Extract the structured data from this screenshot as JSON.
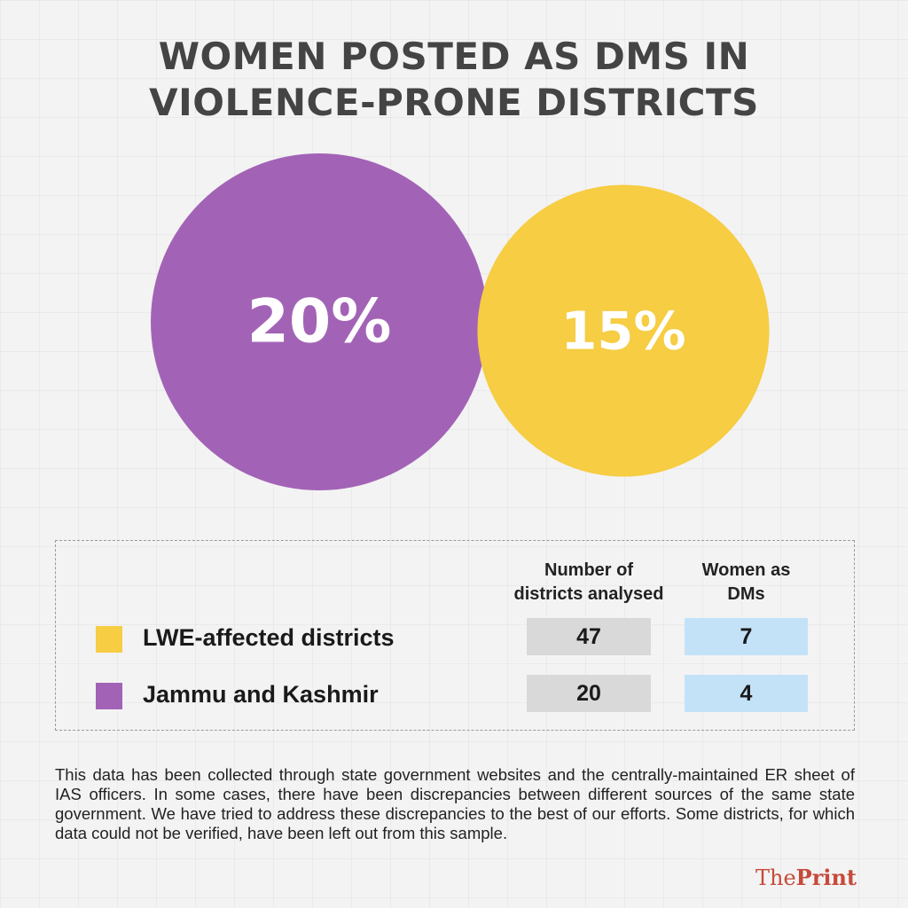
{
  "title": {
    "line1": "WOMEN POSTED AS DMS IN",
    "line2": "VIOLENCE-PRONE DISTRICTS"
  },
  "chart_data": {
    "type": "bubble",
    "series": [
      {
        "label": "20%",
        "value": 20,
        "color": "#a263b6",
        "category": "Jammu and Kashmir"
      },
      {
        "label": "15%",
        "value": 15,
        "color": "#f6cd43",
        "category": "LWE-affected districts"
      }
    ]
  },
  "table": {
    "headers": {
      "districts_line1": "Number of",
      "districts_line2": "districts analysed",
      "women_line1": "Women as",
      "women_line2": "DMs"
    },
    "rows": [
      {
        "label": "LWE-affected districts",
        "color": "#f6cd43",
        "districts": "47",
        "women": "7"
      },
      {
        "label": "Jammu and Kashmir",
        "color": "#a263b6",
        "districts": "20",
        "women": "4"
      }
    ]
  },
  "note": "This data has been collected through state government websites and the centrally-maintained ER sheet of IAS officers. In some cases, there have been discrepancies between different sources of the same state government. We have tried to address these discrepancies to the best of our efforts. Some districts, for which data could not be verified, have been left out from this sample.",
  "logo": {
    "part1": "The",
    "part2": "Print"
  }
}
